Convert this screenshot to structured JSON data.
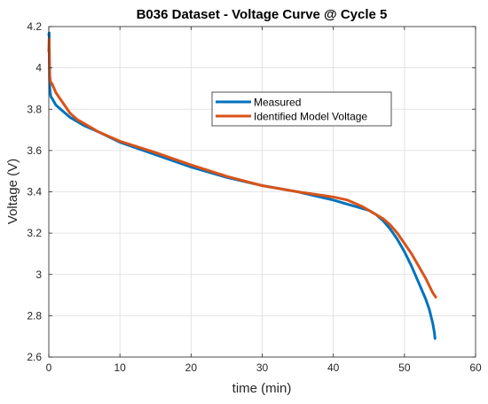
{
  "chart_data": {
    "type": "line",
    "title": "B036 Dataset - Voltage Curve @ Cycle 5",
    "xlabel": "time (min)",
    "ylabel": "Voltage (V)",
    "xlim": [
      0,
      60
    ],
    "ylim": [
      2.6,
      4.2
    ],
    "xticks": [
      0,
      10,
      20,
      30,
      40,
      50,
      60
    ],
    "yticks": [
      2.6,
      2.8,
      3.0,
      3.2,
      3.4,
      3.6,
      3.8,
      4.0,
      4.2
    ],
    "xtick_labels": [
      "0",
      "10",
      "20",
      "30",
      "40",
      "50",
      "60"
    ],
    "ytick_labels": [
      "2.6",
      "2.8",
      "3",
      "3.2",
      "3.4",
      "3.6",
      "3.8",
      "4",
      "4.2"
    ],
    "grid": true,
    "legend_position": "upper-center",
    "series": [
      {
        "name": "Measured",
        "color": "#0072BD",
        "x": [
          0,
          0.05,
          0.1,
          0.15,
          0.2,
          0.3,
          0.5,
          1,
          2,
          3,
          4,
          5,
          7,
          10,
          15,
          20,
          25,
          30,
          35,
          40,
          43,
          45,
          46,
          47,
          48,
          49,
          50,
          51,
          52,
          53,
          53.5,
          54,
          54.2,
          54.3
        ],
        "y": [
          4.16,
          4.17,
          3.95,
          3.9,
          3.88,
          3.86,
          3.85,
          3.82,
          3.79,
          3.76,
          3.74,
          3.72,
          3.69,
          3.64,
          3.58,
          3.52,
          3.47,
          3.43,
          3.4,
          3.36,
          3.33,
          3.31,
          3.29,
          3.26,
          3.22,
          3.17,
          3.11,
          3.04,
          2.96,
          2.88,
          2.83,
          2.76,
          2.72,
          2.69
        ]
      },
      {
        "name": "Identified Model Voltage",
        "color": "#D95319",
        "x": [
          0,
          0.05,
          0.1,
          0.15,
          0.2,
          0.3,
          0.5,
          1,
          2,
          3,
          4,
          5,
          7,
          10,
          15,
          20,
          25,
          30,
          35,
          40,
          42,
          44,
          45,
          46,
          47,
          48,
          49,
          50,
          51,
          52,
          53,
          54,
          54.4
        ],
        "y": [
          4.08,
          4.14,
          4.02,
          3.96,
          3.94,
          3.93,
          3.92,
          3.88,
          3.83,
          3.78,
          3.75,
          3.73,
          3.69,
          3.645,
          3.59,
          3.53,
          3.475,
          3.43,
          3.4,
          3.375,
          3.36,
          3.33,
          3.31,
          3.29,
          3.27,
          3.24,
          3.2,
          3.15,
          3.1,
          3.04,
          2.98,
          2.91,
          2.89
        ]
      }
    ]
  }
}
